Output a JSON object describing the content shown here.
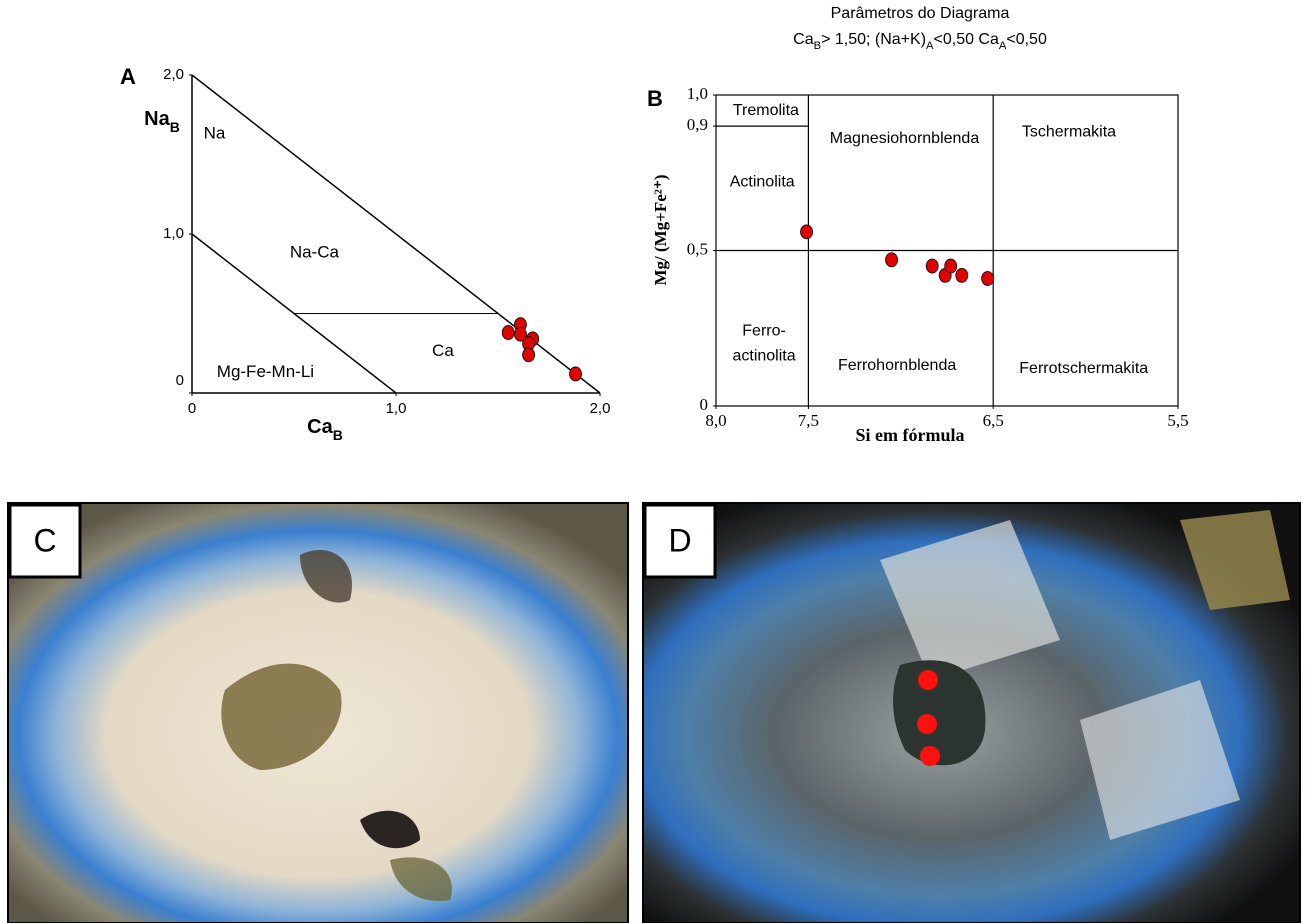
{
  "chart_data": [
    {
      "type": "scatter",
      "panel": "A",
      "x_label": [
        "Ca",
        "B"
      ],
      "y_label": [
        "Na",
        "B"
      ],
      "x": [
        1.55,
        1.61,
        1.61,
        1.67,
        1.65,
        1.65,
        1.88
      ],
      "values": [
        0.38,
        0.43,
        0.37,
        0.34,
        0.31,
        0.24,
        0.12
      ],
      "color": "#e00000",
      "xlim": [
        0,
        2
      ],
      "ylim": [
        0,
        2
      ],
      "xticks": [
        0,
        {
          "value": 1,
          "label": "1,0"
        },
        {
          "value": 2,
          "label": "2,0"
        }
      ],
      "yticks": [
        0,
        {
          "value": 1,
          "label": "1,0"
        },
        {
          "value": 2,
          "label": "2,0"
        }
      ],
      "regions": [
        "Na",
        "Na-Ca",
        "Ca",
        "Mg-Fe-Mn-Li"
      ]
    },
    {
      "type": "scatter",
      "panel": "B",
      "title": "Parâmetros do Diagrama",
      "subtitle": [
        "Ca",
        "B",
        "> 1,50; (Na+K)",
        "A",
        "<0,50  Ca",
        "A",
        "<0,50"
      ],
      "x_label": "Si em fórmula",
      "y_label": "Mg/ (Mg+Fe²⁺)",
      "x": [
        7.51,
        7.05,
        6.83,
        6.76,
        6.73,
        6.67,
        6.53
      ],
      "values": [
        0.56,
        0.47,
        0.45,
        0.42,
        0.45,
        0.42,
        0.41
      ],
      "color": "#e00000",
      "xlim": [
        8,
        5.5
      ],
      "ylim": [
        0,
        1
      ],
      "xticks": [
        {
          "value": 8,
          "label": "8,0"
        },
        {
          "value": 7.5,
          "label": "7,5"
        },
        {
          "value": 6.5,
          "label": "6,5"
        },
        {
          "value": 5.5,
          "label": "5,5"
        }
      ],
      "yticks": [
        0,
        {
          "value": 0.5,
          "label": "0,5"
        },
        {
          "value": 0.9,
          "label": "0,9"
        },
        {
          "value": 1,
          "label": "1,0"
        }
      ],
      "regions": [
        "Tremolita",
        "Actinolita",
        "Magnesiohornblenda",
        "Tschermakita",
        "Ferro-",
        "actinolita",
        "Ferrohornblenda",
        "Ferrotschermakita"
      ]
    }
  ],
  "photos": [
    {
      "label": "C"
    },
    {
      "label": "D"
    }
  ]
}
